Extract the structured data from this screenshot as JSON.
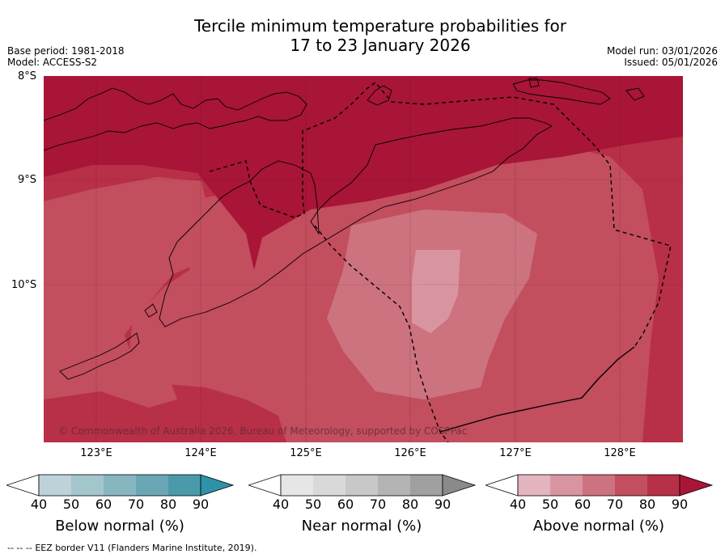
{
  "title": {
    "line1": "Tercile minimum temperature probabilities for",
    "line2": "17 to 23 January 2026"
  },
  "meta": {
    "base_period": "Base period: 1981-2018",
    "model": "Model: ACCESS-S2",
    "model_run": "Model run: 03/01/2026",
    "issued": "Issued: 05/01/2026"
  },
  "map": {
    "lat_labels": [
      "8°S",
      "9°S",
      "10°S"
    ],
    "lon_labels": [
      "123°E",
      "124°E",
      "125°E",
      "126°E",
      "127°E",
      "128°E"
    ],
    "copyright": "© Commonwealth of Australia 2026, Bureau of Meteorology, supported by COSPPac",
    "dominant_category": "Above normal",
    "probability_classes_shown": [
      "60-70",
      "70-80",
      "80-90",
      ">90"
    ]
  },
  "colorbars": [
    {
      "label": "Below normal (%)",
      "ticks": [
        "40",
        "50",
        "60",
        "70",
        "80",
        "90"
      ],
      "colors": [
        "#ffffff",
        "#bdd3d9",
        "#a3c6cc",
        "#88b6c0",
        "#6aa7b4",
        "#4a9aab",
        "#2e93a6"
      ]
    },
    {
      "label": "Near normal (%)",
      "ticks": [
        "40",
        "50",
        "60",
        "70",
        "80",
        "90"
      ],
      "colors": [
        "#ffffff",
        "#e6e6e6",
        "#d9d9d9",
        "#c8c8c8",
        "#b4b4b4",
        "#a0a0a0",
        "#8a8a8a"
      ]
    },
    {
      "label": "Above normal (%)",
      "ticks": [
        "40",
        "50",
        "60",
        "70",
        "80",
        "90"
      ],
      "colors": [
        "#ffffff",
        "#e4b5bf",
        "#d9959f",
        "#cd727f",
        "#c24e5e",
        "#b82f48",
        "#a81537"
      ]
    }
  ],
  "footer": {
    "legend_symbol": "--  --  --",
    "text": "EEZ border V11 (Flanders Marine Institute, 2019)."
  }
}
